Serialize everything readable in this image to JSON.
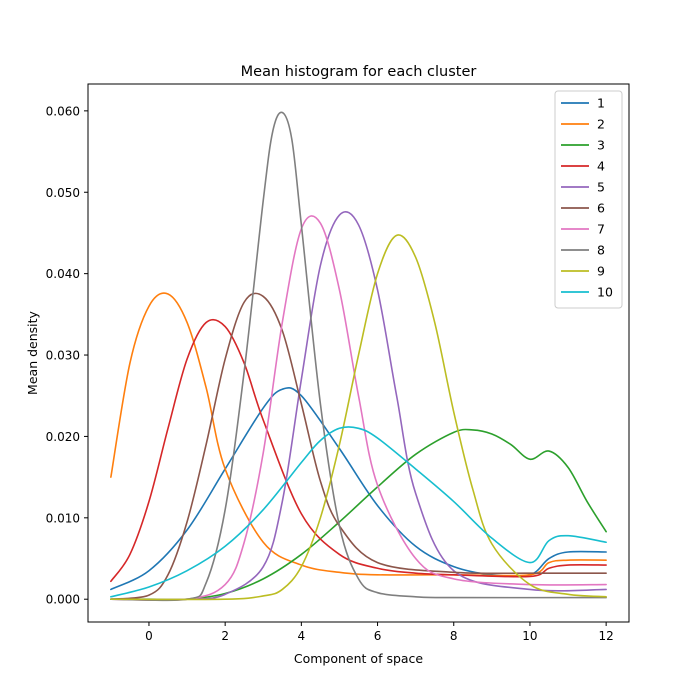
{
  "chart_data": {
    "type": "line",
    "title": "Mean histogram for each cluster",
    "xlabel": "Component of space",
    "ylabel": "Mean density",
    "xlim": [
      -1.6,
      12.6
    ],
    "ylim": [
      -0.0028,
      0.0633
    ],
    "xticks": [
      0,
      2,
      4,
      6,
      8,
      10,
      12
    ],
    "yticks": [
      0.0,
      0.01,
      0.02,
      0.03,
      0.04,
      0.05,
      0.06
    ],
    "ytick_labels": [
      "0.000",
      "0.010",
      "0.020",
      "0.030",
      "0.040",
      "0.050",
      "0.060"
    ],
    "grid": false,
    "legend_position": "top-right",
    "series": [
      {
        "name": "1",
        "color": "#1f77b4",
        "x": [
          -1,
          0,
          1,
          2,
          3,
          3.5,
          4,
          5,
          6,
          7,
          8,
          9,
          10,
          10.5,
          11,
          12
        ],
        "values": [
          0.0012,
          0.0035,
          0.0085,
          0.016,
          0.0235,
          0.0258,
          0.025,
          0.0185,
          0.0115,
          0.0065,
          0.004,
          0.003,
          0.003,
          0.005,
          0.0058,
          0.0058
        ]
      },
      {
        "name": "2",
        "color": "#ff7f0e",
        "x": [
          -1,
          -0.5,
          0,
          0.5,
          1,
          1.5,
          2,
          3,
          4,
          5,
          6,
          8,
          10,
          10.5,
          11,
          12
        ],
        "values": [
          0.015,
          0.029,
          0.036,
          0.0375,
          0.034,
          0.026,
          0.016,
          0.007,
          0.0042,
          0.0033,
          0.003,
          0.003,
          0.003,
          0.0045,
          0.0048,
          0.0048
        ]
      },
      {
        "name": "3",
        "color": "#2ca02c",
        "x": [
          -1,
          0,
          1,
          2,
          3,
          4,
          5,
          6,
          7,
          8,
          8.5,
          9,
          9.5,
          10,
          10.5,
          11,
          11.5,
          12
        ],
        "values": [
          0.0,
          0.0,
          0.0,
          0.0007,
          0.0025,
          0.0055,
          0.0095,
          0.0138,
          0.0178,
          0.0205,
          0.0208,
          0.0203,
          0.019,
          0.0172,
          0.0182,
          0.0162,
          0.012,
          0.0083
        ]
      },
      {
        "name": "4",
        "color": "#d62728",
        "x": [
          -1,
          -0.5,
          0,
          0.5,
          1,
          1.5,
          2,
          2.5,
          3,
          4,
          5,
          6,
          7,
          8,
          10,
          10.5,
          11,
          12
        ],
        "values": [
          0.0022,
          0.0055,
          0.012,
          0.021,
          0.0295,
          0.034,
          0.0335,
          0.029,
          0.022,
          0.0105,
          0.0055,
          0.0038,
          0.0032,
          0.003,
          0.0028,
          0.0038,
          0.0042,
          0.0042
        ]
      },
      {
        "name": "5",
        "color": "#9467bd",
        "x": [
          -1,
          1,
          2,
          3,
          3.5,
          4,
          4.5,
          5,
          5.5,
          6,
          6.5,
          7,
          8,
          10,
          12
        ],
        "values": [
          0.0,
          0.0,
          0.0006,
          0.004,
          0.012,
          0.027,
          0.041,
          0.0472,
          0.046,
          0.038,
          0.025,
          0.013,
          0.0035,
          0.0012,
          0.0012
        ]
      },
      {
        "name": "6",
        "color": "#8c564b",
        "x": [
          -1,
          0,
          0.5,
          1,
          1.5,
          2,
          2.5,
          3,
          3.5,
          4,
          4.5,
          5,
          6,
          8,
          10,
          12
        ],
        "values": [
          0.0,
          0.0005,
          0.003,
          0.0095,
          0.019,
          0.0295,
          0.0365,
          0.0372,
          0.033,
          0.024,
          0.0145,
          0.009,
          0.0045,
          0.0033,
          0.0032,
          0.0032
        ]
      },
      {
        "name": "7",
        "color": "#e377c2",
        "x": [
          -1,
          1,
          2,
          2.5,
          3,
          3.5,
          4,
          4.5,
          5,
          5.5,
          6,
          7,
          8,
          10,
          12
        ],
        "values": [
          0.0,
          0.0,
          0.0018,
          0.007,
          0.018,
          0.034,
          0.0455,
          0.0462,
          0.038,
          0.025,
          0.014,
          0.005,
          0.0025,
          0.0018,
          0.0018
        ]
      },
      {
        "name": "8",
        "color": "#7f7f7f",
        "x": [
          -1,
          1,
          1.5,
          2,
          2.5,
          3,
          3.25,
          3.5,
          3.75,
          4,
          4.5,
          5,
          5.5,
          6,
          7,
          8,
          12
        ],
        "values": [
          0.0,
          0.0,
          0.002,
          0.011,
          0.028,
          0.049,
          0.0575,
          0.0598,
          0.0565,
          0.046,
          0.024,
          0.009,
          0.0025,
          0.0008,
          0.0003,
          0.0002,
          0.0002
        ]
      },
      {
        "name": "9",
        "color": "#bcbd22",
        "x": [
          -1,
          2,
          3,
          3.5,
          4,
          4.5,
          5,
          5.5,
          6,
          6.5,
          7,
          7.5,
          8,
          8.5,
          9,
          10,
          11,
          12
        ],
        "values": [
          0.0,
          0.0,
          0.0004,
          0.0012,
          0.004,
          0.01,
          0.019,
          0.03,
          0.04,
          0.0447,
          0.042,
          0.034,
          0.023,
          0.0135,
          0.0068,
          0.0018,
          0.0006,
          0.0003
        ]
      },
      {
        "name": "10",
        "color": "#17becf",
        "x": [
          -1,
          0,
          1,
          2,
          3,
          4,
          4.5,
          5,
          5.5,
          6,
          7,
          8,
          9,
          10,
          10.5,
          11,
          12
        ],
        "values": [
          0.0003,
          0.0015,
          0.0035,
          0.0065,
          0.011,
          0.0168,
          0.0195,
          0.021,
          0.021,
          0.0198,
          0.016,
          0.012,
          0.0075,
          0.0045,
          0.0072,
          0.0078,
          0.007
        ]
      }
    ]
  }
}
